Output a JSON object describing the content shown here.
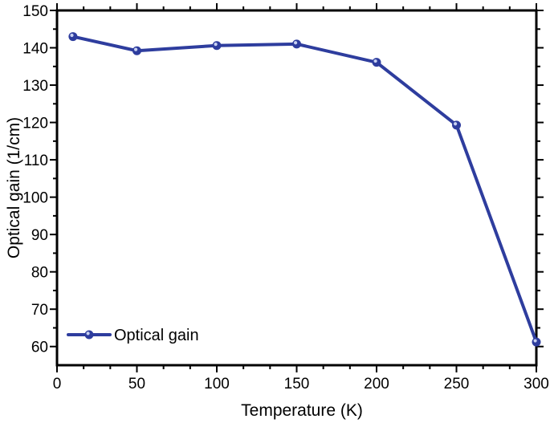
{
  "chart_data": {
    "type": "line",
    "title": "",
    "xlabel": "Temperature (K)",
    "ylabel": "Optical gain (1/cm)",
    "x": [
      10,
      50,
      100,
      150,
      200,
      250,
      300
    ],
    "series": [
      {
        "name": "Optical gain",
        "values": [
          143.0,
          139.2,
          140.6,
          141.0,
          136.1,
          119.3,
          61.2
        ]
      }
    ],
    "xlim": [
      0,
      300
    ],
    "ylim": [
      55,
      150
    ],
    "x_major_ticks": [
      0,
      50,
      100,
      150,
      200,
      250,
      300
    ],
    "y_major_ticks": [
      60,
      70,
      80,
      90,
      100,
      110,
      120,
      130,
      140,
      150
    ],
    "x_minor_divisions": 3,
    "y_minor_divisions": 2,
    "grid": false,
    "legend_position": "lower-left",
    "line_color": "#2e3d9e",
    "marker": "circle-sphere",
    "marker_highlight_color": "#c9d2f2",
    "axis_color": "#000000",
    "background_color": "#ffffff"
  }
}
